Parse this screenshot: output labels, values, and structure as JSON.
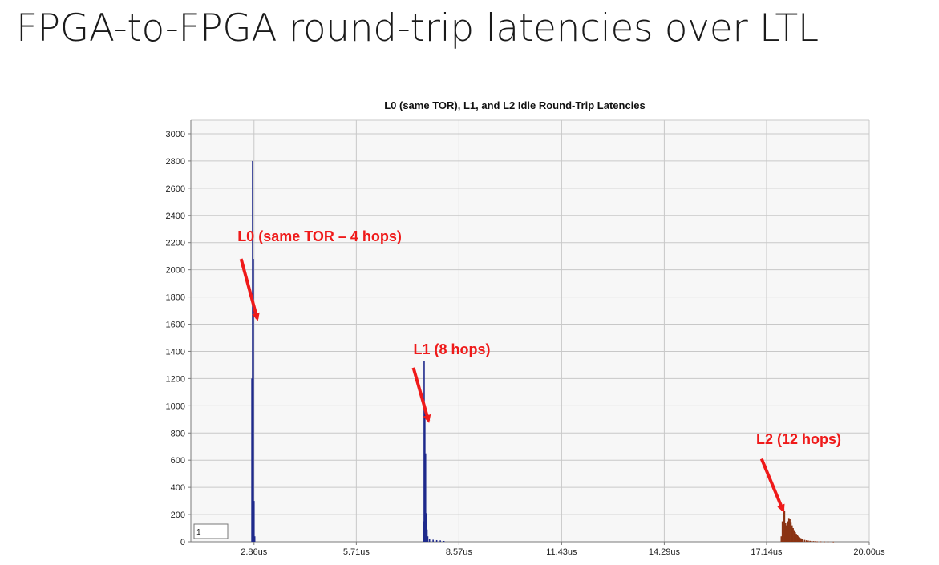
{
  "slide": {
    "title": "FPGA-to-FPGA round-trip latencies over LTL"
  },
  "colors": {
    "plot_background": "#f7f7f7",
    "grid": "#c8c8c8",
    "axis": "#7a7a7a",
    "l0_l1_series": "#1f2a8c",
    "l2_series": "#8a3212",
    "annotation": "#ef1a1a"
  },
  "chart_data": {
    "type": "bar",
    "title": "L0 (same TOR), L1, and L2 Idle Round-Trip Latencies",
    "xlabel": "",
    "ylabel": "",
    "xlim": [
      1.1,
      20.0
    ],
    "ylim": [
      0,
      3100
    ],
    "grid": true,
    "x_ticks": [
      {
        "value": 2.86,
        "label": "2.86us"
      },
      {
        "value": 5.71,
        "label": "5.71us"
      },
      {
        "value": 8.57,
        "label": "8.57us"
      },
      {
        "value": 11.43,
        "label": "11.43us"
      },
      {
        "value": 14.29,
        "label": "14.29us"
      },
      {
        "value": 17.14,
        "label": "17.14us"
      },
      {
        "value": 20.0,
        "label": "20.00us"
      }
    ],
    "y_ticks": [
      0,
      200,
      400,
      600,
      800,
      1000,
      1200,
      1400,
      1600,
      1800,
      2000,
      2200,
      2400,
      2600,
      2800,
      3000
    ],
    "legend_box_text": "1",
    "series": [
      {
        "color": "#1f2a8c",
        "bars": [
          {
            "x": 2.8,
            "y": 1200
          },
          {
            "x": 2.82,
            "y": 2800
          },
          {
            "x": 2.84,
            "y": 2080
          },
          {
            "x": 2.86,
            "y": 300
          },
          {
            "x": 2.88,
            "y": 40
          },
          {
            "x": 7.58,
            "y": 150
          },
          {
            "x": 7.6,
            "y": 1330
          },
          {
            "x": 7.62,
            "y": 980
          },
          {
            "x": 7.64,
            "y": 650
          },
          {
            "x": 7.66,
            "y": 210
          },
          {
            "x": 7.68,
            "y": 90
          },
          {
            "x": 7.7,
            "y": 40
          },
          {
            "x": 7.75,
            "y": 20
          },
          {
            "x": 7.85,
            "y": 15
          },
          {
            "x": 7.95,
            "y": 12
          },
          {
            "x": 8.05,
            "y": 10
          },
          {
            "x": 8.15,
            "y": 6
          }
        ]
      },
      {
        "color": "#8a3212",
        "bars": [
          {
            "x": 17.55,
            "y": 40
          },
          {
            "x": 17.58,
            "y": 150
          },
          {
            "x": 17.61,
            "y": 275
          },
          {
            "x": 17.64,
            "y": 230
          },
          {
            "x": 17.67,
            "y": 140
          },
          {
            "x": 17.7,
            "y": 120
          },
          {
            "x": 17.73,
            "y": 150
          },
          {
            "x": 17.76,
            "y": 175
          },
          {
            "x": 17.79,
            "y": 165
          },
          {
            "x": 17.82,
            "y": 145
          },
          {
            "x": 17.85,
            "y": 120
          },
          {
            "x": 17.88,
            "y": 100
          },
          {
            "x": 17.91,
            "y": 85
          },
          {
            "x": 17.94,
            "y": 70
          },
          {
            "x": 17.97,
            "y": 58
          },
          {
            "x": 18.0,
            "y": 48
          },
          {
            "x": 18.03,
            "y": 40
          },
          {
            "x": 18.06,
            "y": 33
          },
          {
            "x": 18.09,
            "y": 27
          },
          {
            "x": 18.12,
            "y": 22
          },
          {
            "x": 18.15,
            "y": 18
          },
          {
            "x": 18.2,
            "y": 14
          },
          {
            "x": 18.25,
            "y": 11
          },
          {
            "x": 18.3,
            "y": 9
          },
          {
            "x": 18.35,
            "y": 7
          },
          {
            "x": 18.4,
            "y": 6
          },
          {
            "x": 18.45,
            "y": 5
          },
          {
            "x": 18.5,
            "y": 4
          },
          {
            "x": 18.55,
            "y": 3
          },
          {
            "x": 18.65,
            "y": 3
          },
          {
            "x": 18.75,
            "y": 2
          },
          {
            "x": 18.85,
            "y": 2
          },
          {
            "x": 19.0,
            "y": 1
          }
        ]
      }
    ],
    "annotations": [
      {
        "label": "L0 (same TOR – 4 hops)",
        "text_x": 2.4,
        "text_y": 2210,
        "arrow_from": [
          2.5,
          2080
        ],
        "arrow_to": [
          2.95,
          1640
        ]
      },
      {
        "label": "L1 (8 hops)",
        "text_x": 7.3,
        "text_y": 1380,
        "arrow_from": [
          7.3,
          1280
        ],
        "arrow_to": [
          7.72,
          890
        ]
      },
      {
        "label": "L2 (12 hops)",
        "text_x": 16.85,
        "text_y": 720,
        "arrow_from": [
          17.0,
          610
        ],
        "arrow_to": [
          17.6,
          230
        ]
      }
    ]
  }
}
